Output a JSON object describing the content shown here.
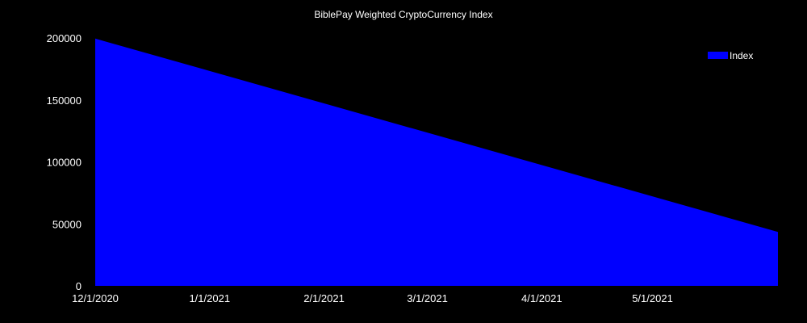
{
  "colors": {
    "background": "#000000",
    "text": "#ffffff",
    "series": "#0000ff"
  },
  "chart_data": {
    "type": "area",
    "title": "BiblePay Weighted CryptoCurrency Index",
    "xlabel": "",
    "ylabel": "",
    "x": [
      "2020-12-01",
      "2021-06-04"
    ],
    "series": [
      {
        "name": "Index",
        "values": [
          199500,
          43500
        ],
        "color": "#0000ff"
      }
    ],
    "xlim": [
      "2020-12-01",
      "2021-06-04"
    ],
    "ylim": [
      0,
      200000
    ],
    "x_ticks": [
      "12/1/2020",
      "1/1/2021",
      "2/1/2021",
      "3/1/2021",
      "4/1/2021",
      "5/1/2021"
    ],
    "y_ticks": [
      "0",
      "50000",
      "100000",
      "150000",
      "200000"
    ],
    "grid": false,
    "legend": {
      "position": "top-right",
      "entries": [
        "Index"
      ]
    }
  }
}
